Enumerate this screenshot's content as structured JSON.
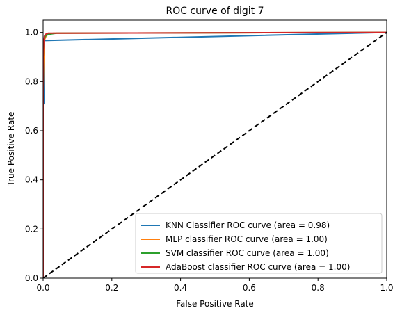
{
  "chart_data": {
    "type": "line",
    "title": "ROC curve of digit 7",
    "xlabel": "False Positive Rate",
    "ylabel": "True Positive Rate",
    "xlim": [
      0.0,
      1.0
    ],
    "ylim": [
      0.0,
      1.05
    ],
    "xticks": [
      "0.0",
      "0.2",
      "0.4",
      "0.6",
      "0.8",
      "1.0"
    ],
    "yticks": [
      "0.0",
      "0.2",
      "0.4",
      "0.6",
      "0.8",
      "1.0"
    ],
    "grid": false,
    "legend_position": "lower-right",
    "series": [
      {
        "name": "KNN Classifier ROC curve (area = 0.98)",
        "color": "#1f77b4",
        "x": [
          0.0,
          0.0,
          0.003,
          0.003,
          1.0
        ],
        "y": [
          0.0,
          0.71,
          0.71,
          0.967,
          1.0
        ]
      },
      {
        "name": "MLP classifier ROC curve (area = 1.00)",
        "color": "#ff7f0e",
        "x": [
          0.0,
          0.0,
          0.002,
          0.004,
          0.01,
          0.03,
          1.0
        ],
        "y": [
          0.0,
          0.76,
          0.9,
          0.97,
          0.99,
          0.997,
          1.0
        ]
      },
      {
        "name": "SVM classifier ROC curve (area = 1.00)",
        "color": "#2ca02c",
        "x": [
          0.0,
          0.0,
          0.002,
          0.006,
          0.015,
          0.03,
          0.04,
          1.0
        ],
        "y": [
          0.0,
          0.9,
          0.96,
          0.985,
          0.992,
          0.995,
          0.997,
          1.0
        ]
      },
      {
        "name": "AdaBoost classifier ROC curve (area = 1.00)",
        "color": "#d62728",
        "x": [
          0.0,
          0.0,
          0.002,
          0.004,
          0.008,
          0.015,
          1.0
        ],
        "y": [
          0.0,
          0.9,
          0.96,
          0.985,
          0.993,
          0.997,
          1.0
        ]
      }
    ],
    "reference_line": {
      "x": [
        0.0,
        1.0
      ],
      "y": [
        0.0,
        1.0
      ],
      "color": "#000000",
      "style": "dashed"
    }
  }
}
